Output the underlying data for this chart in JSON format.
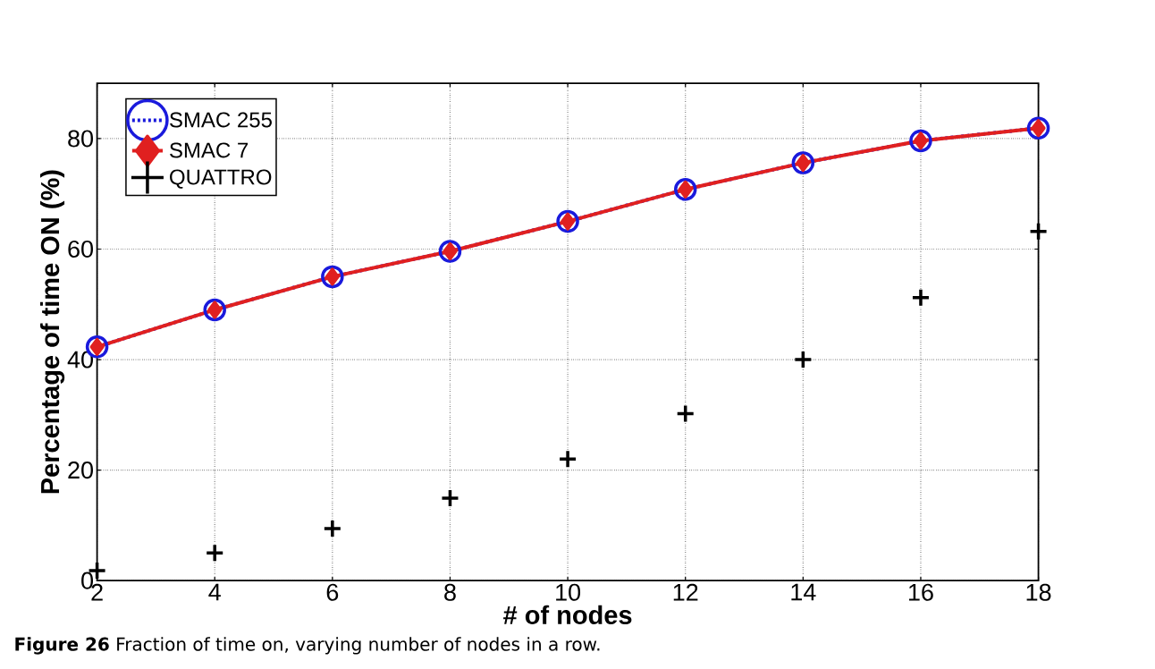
{
  "chart_data": {
    "type": "line",
    "xlabel": "# of nodes",
    "ylabel": "Percentage of time ON (%)",
    "x": [
      2,
      4,
      6,
      8,
      10,
      12,
      14,
      16,
      18
    ],
    "series": [
      {
        "name": "SMAC 255",
        "color": "#1a1adc",
        "line_style": "dashed",
        "marker": "circle",
        "values": [
          42.3,
          49,
          55,
          59.6,
          65,
          70.8,
          75.6,
          79.6,
          81.9
        ]
      },
      {
        "name": "SMAC 7",
        "color": "#e02020",
        "line_style": "solid",
        "marker": "diamond",
        "values": [
          42.3,
          49,
          55,
          59.6,
          65,
          70.8,
          75.6,
          79.6,
          81.9
        ]
      },
      {
        "name": "QUATTRO",
        "type": "scatter",
        "color": "#000000",
        "marker": "cross",
        "values": [
          1.8,
          5,
          9.4,
          14.9,
          22,
          30.2,
          40,
          51.2,
          63.2
        ]
      }
    ],
    "xlim": [
      2,
      18
    ],
    "ylim": [
      0,
      90
    ],
    "xticks": [
      2,
      4,
      6,
      8,
      10,
      12,
      14,
      16,
      18
    ],
    "yticks": [
      0,
      20,
      40,
      60,
      80
    ],
    "grid": true,
    "legend": "top left",
    "annotations": [
      "**Figure 26** Fraction of time on, varying number of nodes in a row."
    ]
  }
}
